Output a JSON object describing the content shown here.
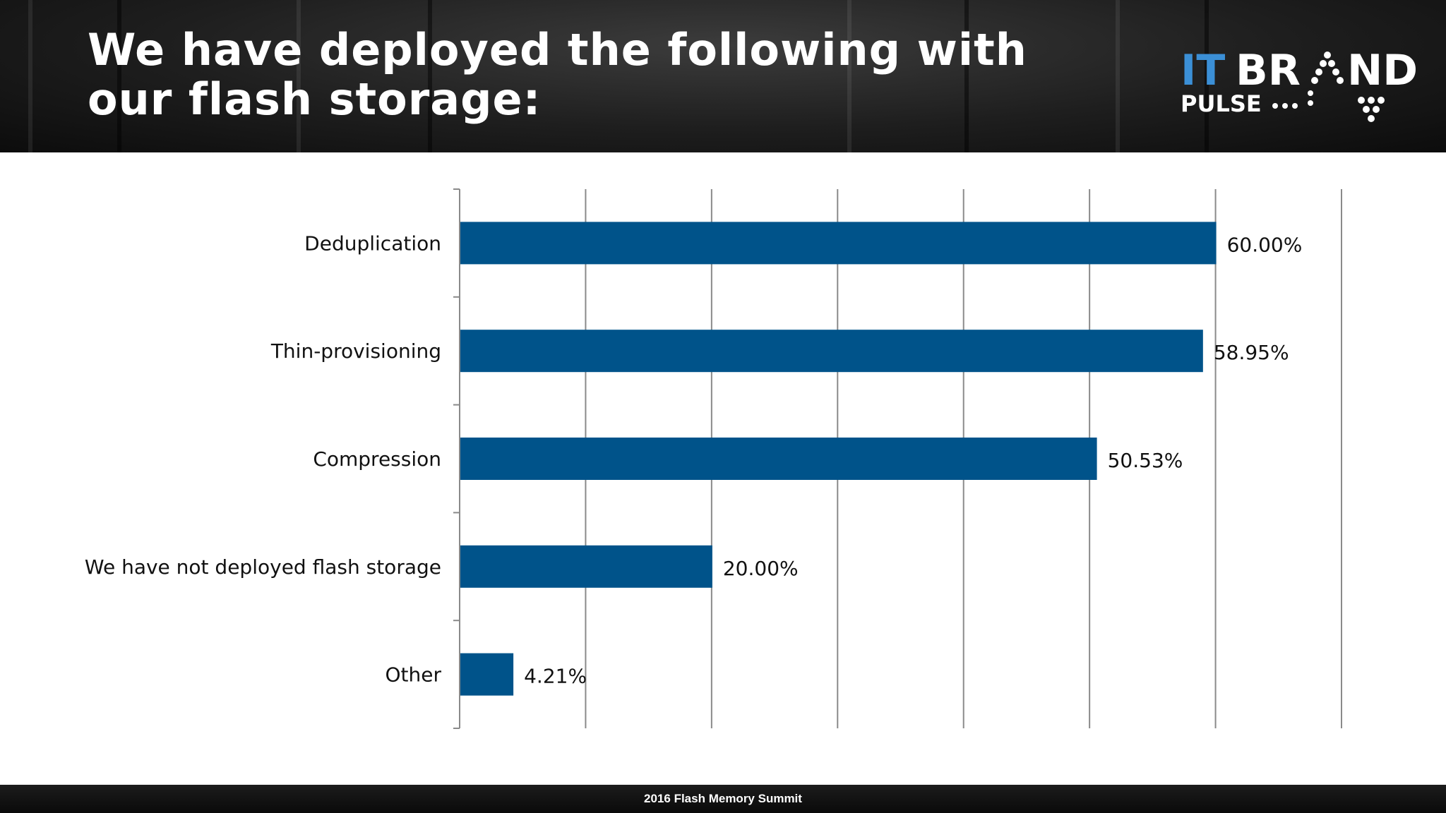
{
  "slide": {
    "title": "We have deployed the following with our flash storage:",
    "footer": "2016 Flash Memory Summit"
  },
  "logo": {
    "text_it": "IT",
    "text_brand": "BR",
    "text_nd": "ND",
    "text_pulse": "PULSE"
  },
  "colors": {
    "bar": "#00538a",
    "accent_blue": "#3b8fd6",
    "gridline": "#8a8a8a"
  },
  "chart_data": {
    "type": "bar",
    "orientation": "horizontal",
    "categories": [
      "Deduplication",
      "Thin-provisioning",
      "Compression",
      "We have not deployed flash storage",
      "Other"
    ],
    "values": [
      60.0,
      58.95,
      50.53,
      20.0,
      4.21
    ],
    "value_labels": [
      "60.00%",
      "58.95%",
      "50.53%",
      "20.00%",
      "4.21%"
    ],
    "xlim": [
      0,
      70
    ],
    "x_gridline_step": 10,
    "grid": true,
    "legend": "none"
  }
}
